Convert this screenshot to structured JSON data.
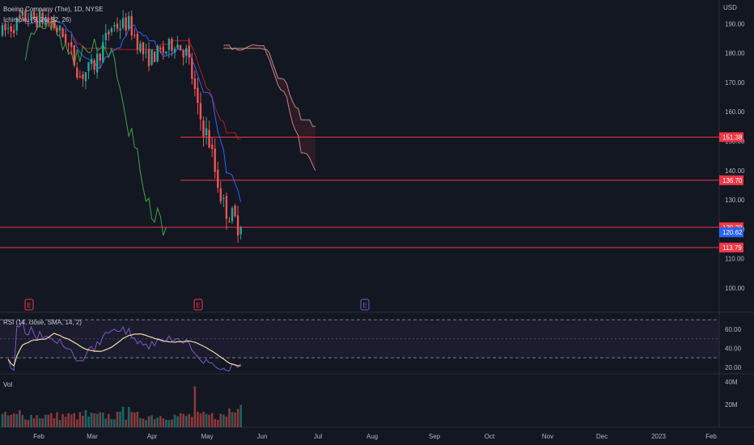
{
  "header": {
    "symbol": "Boeing Company (The), 1D, NYSE",
    "indicator": "Ichimoku (9, 26, 52, 26)",
    "rsi": "RSI (14, close, SMA, 14, 2)",
    "volume": "Vol"
  },
  "colors": {
    "background": "#131722",
    "up": "#26a69a",
    "down": "#ef5350",
    "level_line": "#f23645",
    "tenkan": "#2962ff",
    "kijun": "#b71c1c",
    "lagging": "#43a047",
    "rsi_line": "#7e57c2",
    "rsi_ma": "#f0d9a6"
  },
  "earnings_markers": [
    {
      "label": "E",
      "x_label": "Jan 26",
      "color": "#f23645"
    },
    {
      "label": "E",
      "x_label": "Apr 27",
      "color": "#f23645"
    },
    {
      "label": "E",
      "x_label": "Jul 27",
      "color": "#7e57c2"
    }
  ],
  "chart_data": [
    {
      "type": "candlestick",
      "ylabel": "USD",
      "x_ticks": [
        "Feb",
        "Mar",
        "Apr",
        "May",
        "Jun",
        "Jul",
        "Aug",
        "Sep",
        "Oct",
        "Nov",
        "Dec",
        "2023",
        "Feb"
      ],
      "y_ticks": [
        "100.00",
        "110.00",
        "120.00",
        "130.00",
        "140.00",
        "150.00",
        "160.00",
        "170.00",
        "180.00",
        "190.00"
      ],
      "ylim": [
        94,
        198
      ],
      "price_levels": [
        {
          "value": 151.38,
          "label": "151.38",
          "color": "#f23645"
        },
        {
          "value": 136.7,
          "label": "136.70",
          "color": "#f23645"
        },
        {
          "value": 120.7,
          "label": "120.70",
          "color": "#f23645"
        },
        {
          "value": 113.79,
          "label": "113.79",
          "color": "#f23645"
        }
      ],
      "last_price": {
        "value": 120.62,
        "label": "120.62",
        "color": "#2962ff"
      },
      "period": {
        "start": "2022-01-19",
        "end": "2022-05-20",
        "trading_days": 84
      }
    },
    {
      "type": "line",
      "title": "RSI (14, close, SMA, 14, 2)",
      "y_ticks": [
        "20.00",
        "40.00",
        "60.00"
      ],
      "ylim": [
        15,
        72
      ],
      "bands": [
        70,
        30
      ],
      "latest": {
        "rsi": 30,
        "ma": 29
      }
    },
    {
      "type": "bar",
      "title": "Vol",
      "y_ticks": [
        "20M",
        "40M"
      ],
      "ylim": [
        0,
        40000000
      ],
      "max_spike": {
        "date": "Apr 27",
        "value": 36000000
      }
    }
  ]
}
